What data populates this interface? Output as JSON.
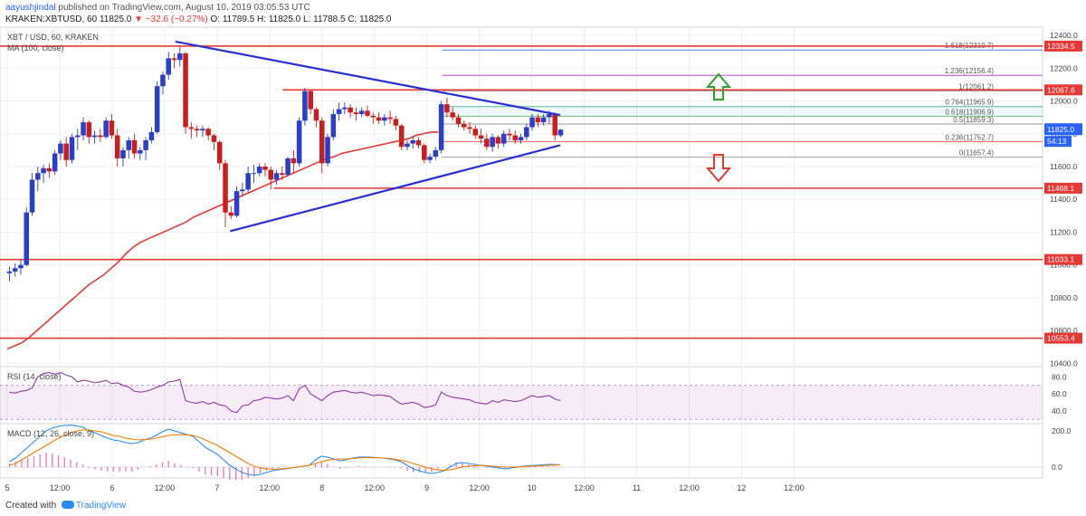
{
  "header": {
    "author": "aayushjindal",
    "published_text": "published on TradingView.com, August 10, 2019 03:05:53 UTC",
    "symbol": "KRAKEN:XBTUSD, 60",
    "last": "11825.0",
    "change": "▼ −32.6 (−0.27%)",
    "ohlc": "O: 11789.5 H: 11825.0 L: 11788.5 C: 11825.0"
  },
  "chart_title": "XBT / USD, 60, KRAKEN",
  "ma_label": "MA (100, close)",
  "rsi_label": "RSI (14, close)",
  "macd_label": "MACD (12, 26, close, 9)",
  "footer": {
    "created_with": "Created with",
    "brand": "TradingView"
  },
  "chart_data": {
    "type": "candlestick",
    "title": "XBT / USD, 60, KRAKEN",
    "timeframe": "60",
    "x_tick_labels": [
      "5",
      "12:00",
      "6",
      "12:00",
      "7",
      "12:00",
      "8",
      "12:00",
      "9",
      "12:00",
      "10",
      "12:00",
      "11",
      "12:00",
      "12",
      "12:00"
    ],
    "x_tick_offsets_hours": [
      0,
      12,
      24,
      36,
      48,
      60,
      72,
      84,
      96,
      108,
      120,
      132,
      144,
      156,
      168,
      180
    ],
    "y_ticks": [
      "12400.0",
      "12200.0",
      "12000.0",
      "11800.0",
      "11600.0",
      "11400.0",
      "11200.0",
      "11000.0",
      "10800.0",
      "10600.0",
      "10400.0"
    ],
    "ylim": [
      10380,
      12450
    ],
    "candles": [
      [
        10950,
        10990,
        10900,
        10960
      ],
      [
        10960,
        11010,
        10930,
        10980
      ],
      [
        10980,
        11030,
        10940,
        11000
      ],
      [
        11000,
        11350,
        10990,
        11320
      ],
      [
        11320,
        11560,
        11300,
        11520
      ],
      [
        11520,
        11600,
        11450,
        11560
      ],
      [
        11560,
        11610,
        11500,
        11590
      ],
      [
        11590,
        11620,
        11530,
        11570
      ],
      [
        11570,
        11700,
        11550,
        11680
      ],
      [
        11680,
        11760,
        11640,
        11740
      ],
      [
        11740,
        11780,
        11600,
        11640
      ],
      [
        11640,
        11800,
        11620,
        11780
      ],
      [
        11780,
        11830,
        11700,
        11790
      ],
      [
        11790,
        11900,
        11760,
        11870
      ],
      [
        11870,
        11880,
        11740,
        11780
      ],
      [
        11780,
        11820,
        11740,
        11790
      ],
      [
        11790,
        11830,
        11750,
        11780
      ],
      [
        11780,
        11900,
        11770,
        11880
      ],
      [
        11880,
        11920,
        11770,
        11790
      ],
      [
        11790,
        11830,
        11600,
        11650
      ],
      [
        11650,
        11720,
        11600,
        11700
      ],
      [
        11700,
        11780,
        11650,
        11760
      ],
      [
        11760,
        11800,
        11650,
        11680
      ],
      [
        11680,
        11720,
        11640,
        11700
      ],
      [
        11700,
        11780,
        11640,
        11760
      ],
      [
        11760,
        11840,
        11740,
        11810
      ],
      [
        11810,
        12120,
        11800,
        12090
      ],
      [
        12090,
        12180,
        12040,
        12160
      ],
      [
        12160,
        12300,
        12130,
        12260
      ],
      [
        12260,
        12290,
        12200,
        12250
      ],
      [
        12250,
        12330,
        12210,
        12290
      ],
      [
        12290,
        12300,
        11800,
        11840
      ],
      [
        11840,
        11870,
        11770,
        11830
      ],
      [
        11830,
        11850,
        11780,
        11820
      ],
      [
        11820,
        11850,
        11780,
        11830
      ],
      [
        11830,
        11840,
        11760,
        11790
      ],
      [
        11790,
        11800,
        11700,
        11750
      ],
      [
        11750,
        11760,
        11580,
        11620
      ],
      [
        11620,
        11640,
        11230,
        11320
      ],
      [
        11320,
        11360,
        11280,
        11300
      ],
      [
        11300,
        11480,
        11290,
        11450
      ],
      [
        11450,
        11500,
        11420,
        11460
      ],
      [
        11460,
        11600,
        11440,
        11560
      ],
      [
        11560,
        11610,
        11500,
        11560
      ],
      [
        11560,
        11620,
        11540,
        11600
      ],
      [
        11600,
        11620,
        11540,
        11580
      ],
      [
        11580,
        11600,
        11460,
        11520
      ],
      [
        11520,
        11580,
        11490,
        11560
      ],
      [
        11560,
        11600,
        11520,
        11550
      ],
      [
        11550,
        11660,
        11540,
        11650
      ],
      [
        11650,
        11700,
        11560,
        11620
      ],
      [
        11620,
        11900,
        11600,
        11880
      ],
      [
        11880,
        12080,
        11850,
        12060
      ],
      [
        12060,
        12070,
        11920,
        11950
      ],
      [
        11950,
        11960,
        11840,
        11880
      ],
      [
        11880,
        11900,
        11560,
        11620
      ],
      [
        11620,
        11800,
        11600,
        11780
      ],
      [
        11780,
        11950,
        11760,
        11920
      ],
      [
        11920,
        11990,
        11880,
        11950
      ],
      [
        11950,
        11990,
        11920,
        11960
      ],
      [
        11960,
        11980,
        11900,
        11930
      ],
      [
        11930,
        11960,
        11880,
        11920
      ],
      [
        11920,
        11960,
        11900,
        11940
      ],
      [
        11940,
        11970,
        11900,
        11910
      ],
      [
        11910,
        11930,
        11860,
        11900
      ],
      [
        11900,
        11930,
        11860,
        11880
      ],
      [
        11880,
        11920,
        11850,
        11900
      ],
      [
        11900,
        11940,
        11860,
        11890
      ],
      [
        11890,
        11910,
        11820,
        11850
      ],
      [
        11850,
        11860,
        11700,
        11720
      ],
      [
        11720,
        11760,
        11700,
        11740
      ],
      [
        11740,
        11780,
        11710,
        11760
      ],
      [
        11760,
        11780,
        11710,
        11730
      ],
      [
        11730,
        11740,
        11620,
        11640
      ],
      [
        11640,
        11680,
        11620,
        11660
      ],
      [
        11660,
        11720,
        11640,
        11700
      ],
      [
        11700,
        12000,
        11680,
        11980
      ],
      [
        11980,
        12020,
        11900,
        11930
      ],
      [
        11930,
        11960,
        11880,
        11900
      ],
      [
        11900,
        11920,
        11840,
        11860
      ],
      [
        11860,
        11880,
        11820,
        11840
      ],
      [
        11840,
        11870,
        11800,
        11830
      ],
      [
        11830,
        11850,
        11770,
        11790
      ],
      [
        11790,
        11830,
        11740,
        11770
      ],
      [
        11770,
        11800,
        11700,
        11720
      ],
      [
        11720,
        11800,
        11690,
        11780
      ],
      [
        11780,
        11790,
        11710,
        11740
      ],
      [
        11740,
        11820,
        11720,
        11800
      ],
      [
        11800,
        11830,
        11760,
        11790
      ],
      [
        11790,
        11820,
        11740,
        11760
      ],
      [
        11760,
        11800,
        11740,
        11780
      ],
      [
        11780,
        11860,
        11760,
        11840
      ],
      [
        11840,
        11920,
        11820,
        11900
      ],
      [
        11900,
        11920,
        11840,
        11870
      ],
      [
        11870,
        11920,
        11850,
        11900
      ],
      [
        11900,
        11940,
        11860,
        11920
      ],
      [
        11920,
        11930,
        11760,
        11790
      ],
      [
        11790,
        11830,
        11780,
        11825
      ]
    ],
    "ma_100": [
      10488,
      10507,
      10526,
      10560,
      10600,
      10640,
      10680,
      10720,
      10760,
      10800,
      10840,
      10880,
      10910,
      10940,
      10980,
      11020,
      11070,
      11110,
      11140,
      11160,
      11180,
      11200,
      11220,
      11240,
      11260,
      11290,
      11310,
      11330,
      11350,
      11370,
      11390,
      11410,
      11430,
      11450,
      11470,
      11490,
      11510,
      11530,
      11550,
      11570,
      11590,
      11610,
      11630,
      11650,
      11660,
      11680,
      11690,
      11700,
      11710,
      11720,
      11730,
      11740,
      11750,
      11760,
      11770,
      11790,
      11800,
      11810,
      11810
    ],
    "ma_100_x_step": 1.7,
    "horizontal_levels": [
      {
        "value": 12334.5,
        "label": "12334.5",
        "color": "#e53935"
      },
      {
        "value": 12067.6,
        "label": "12067.6",
        "color": "#e53935",
        "x_from_hour": 63
      },
      {
        "value": 11468.1,
        "label": "11468.1",
        "color": "#e53935",
        "x_from_hour": 61
      },
      {
        "value": 11033.1,
        "label": "11033.1",
        "color": "#e53935"
      },
      {
        "value": 10553.4,
        "label": "10553.4",
        "color": "#e53935"
      }
    ],
    "last_price": {
      "value": 11825.0,
      "label": "11825.0",
      "countdown": "54:13",
      "color": "#2962ff"
    },
    "trendlines": [
      {
        "name": "upper",
        "x1_hour": 38.5,
        "y1": 12362,
        "x2_hour": 126.5,
        "y2": 11914,
        "color": "#2a2fd4"
      },
      {
        "name": "lower",
        "x1_hour": 51,
        "y1": 11206,
        "x2_hour": 126.5,
        "y2": 11730,
        "color": "#2a2fd4"
      }
    ],
    "fibonacci": [
      {
        "ratio": "0",
        "value": 11657.4,
        "text": "0(11657.4)"
      },
      {
        "ratio": "0.236",
        "value": 11752.7,
        "text": "0.236(11752.7)"
      },
      {
        "ratio": "0.5",
        "value": 11859.3,
        "text": "0.5(11859.3)"
      },
      {
        "ratio": "0.618",
        "value": 11906.9,
        "text": "0.618(11906.9)"
      },
      {
        "ratio": "0.764",
        "value": 11965.9,
        "text": "0.764(11965.9)"
      },
      {
        "ratio": "1",
        "value": 12061.2,
        "text": "1(12061.2)"
      },
      {
        "ratio": "1.236",
        "value": 12156.4,
        "text": "1.236(12156.4)"
      },
      {
        "ratio": "1.618",
        "value": 12310.7,
        "text": "1.618(12310.7)"
      }
    ],
    "fib_colors": [
      "#888888",
      "#e53935",
      "#7e7e7e",
      "#4caf50",
      "#26a69a",
      "#888888",
      "#9c27b0",
      "#2962ff"
    ],
    "fib_x_range_hours": [
      99.5,
      144
    ],
    "arrows": [
      {
        "direction": "up",
        "color": "#2e9e2e"
      },
      {
        "direction": "down",
        "color": "#e53935"
      }
    ],
    "rsi": {
      "name": "RSI (14, close)",
      "levels": [
        70,
        30
      ],
      "y_ticks": [
        "80.0",
        "60.0",
        "40.0"
      ],
      "ylim": [
        25,
        92
      ],
      "values": [
        62,
        61,
        63,
        64,
        67,
        80,
        84,
        85,
        83,
        85,
        82,
        80,
        74,
        76,
        75,
        73,
        74,
        76,
        72,
        73,
        70,
        68,
        63,
        62,
        63,
        65,
        68,
        70,
        74,
        75,
        77,
        52,
        50,
        49,
        51,
        48,
        50,
        47,
        46,
        40,
        38,
        46,
        47,
        52,
        53,
        56,
        55,
        54,
        55,
        58,
        52,
        66,
        70,
        60,
        56,
        52,
        58,
        62,
        63,
        64,
        62,
        61,
        62,
        60,
        58,
        59,
        58,
        57,
        52,
        48,
        49,
        50,
        48,
        44,
        45,
        47,
        62,
        58,
        56,
        55,
        54,
        53,
        50,
        49,
        48,
        52,
        50,
        53,
        52,
        51,
        52,
        55,
        58,
        56,
        57,
        58,
        54,
        52
      ]
    },
    "macd": {
      "name": "MACD (12, 26, close, 9)",
      "y_ticks": [
        "200.0",
        "0.0"
      ],
      "ylim": [
        -60,
        240
      ],
      "macd_line": [
        30,
        50,
        80,
        110,
        140,
        170,
        200,
        215,
        225,
        230,
        232,
        228,
        220,
        200,
        190,
        175,
        160,
        150,
        145,
        135,
        130,
        135,
        150,
        160,
        175,
        195,
        210,
        200,
        190,
        180,
        170,
        140,
        110,
        90,
        70,
        40,
        10,
        -10,
        -30,
        -40,
        -45,
        -40,
        -30,
        -20,
        -15,
        -10,
        -5,
        0,
        5,
        10,
        40,
        60,
        55,
        45,
        35,
        40,
        50,
        55,
        56,
        55,
        52,
        50,
        45,
        40,
        30,
        10,
        -10,
        -20,
        -30,
        -35,
        -30,
        -20,
        0,
        20,
        25,
        20,
        15,
        10,
        5,
        0,
        -5,
        -10,
        -5,
        0,
        5,
        8,
        10,
        12,
        15,
        14,
        13
      ],
      "signal_line": [
        10,
        20,
        40,
        60,
        80,
        100,
        120,
        140,
        160,
        175,
        190,
        200,
        205,
        205,
        200,
        195,
        185,
        175,
        170,
        160,
        155,
        150,
        152,
        155,
        160,
        168,
        175,
        178,
        180,
        178,
        175,
        165,
        150,
        135,
        120,
        100,
        80,
        60,
        40,
        20,
        5,
        -5,
        -10,
        -12,
        -10,
        -8,
        -5,
        0,
        5,
        10,
        20,
        30,
        38,
        42,
        45,
        45,
        47,
        50,
        52,
        52,
        52,
        50,
        48,
        44,
        38,
        30,
        20,
        10,
        0,
        -10,
        -15,
        -18,
        -15,
        -8,
        0,
        5,
        8,
        10,
        8,
        5,
        3,
        0,
        0,
        1,
        3,
        5,
        6,
        8,
        10,
        11,
        12
      ],
      "line_colors": {
        "macd": "#2a8cf2",
        "signal": "#f57c00",
        "histogram": "#e0509a"
      }
    }
  }
}
